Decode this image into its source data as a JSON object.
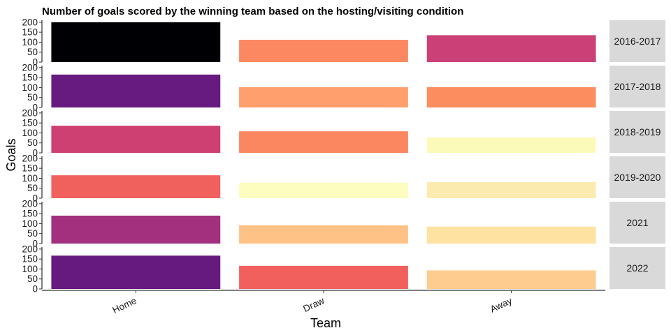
{
  "chart_data": {
    "type": "bar",
    "title": "Number of goals scored by the winning team based on the hosting/visiting condition",
    "xlabel": "Team",
    "ylabel": "Goals",
    "categories": [
      "Home",
      "Draw",
      "Away"
    ],
    "ylim": [
      0,
      210
    ],
    "yticks": [
      0,
      50,
      100,
      150,
      200
    ],
    "ytick_labels": [
      "0",
      "50",
      "100",
      "150",
      "200"
    ],
    "grid": false,
    "legend": "none",
    "facets": [
      {
        "label": "2016-2017",
        "values": [
          200,
          112,
          135
        ],
        "colors": [
          "#000004",
          "#FB8861",
          "#CB4077"
        ]
      },
      {
        "label": "2017-2018",
        "values": [
          165,
          102,
          102
        ],
        "colors": [
          "#671A80",
          "#FE9F6D",
          "#FC8D5F"
        ]
      },
      {
        "label": "2018-2019",
        "values": [
          136,
          108,
          77
        ],
        "colors": [
          "#CD4071",
          "#FB8761",
          "#FCFAB8"
        ]
      },
      {
        "label": "2019-2020",
        "values": [
          115,
          78,
          81
        ],
        "colors": [
          "#F0605D",
          "#FCFDBF",
          "#FCEBAE"
        ]
      },
      {
        "label": "2021",
        "values": [
          140,
          92,
          85
        ],
        "colors": [
          "#A3307E",
          "#FEC287",
          "#FDE2A1"
        ]
      },
      {
        "label": "2022",
        "values": [
          167,
          116,
          93
        ],
        "colors": [
          "#661A80",
          "#F1605D",
          "#FECC8F"
        ]
      }
    ]
  }
}
